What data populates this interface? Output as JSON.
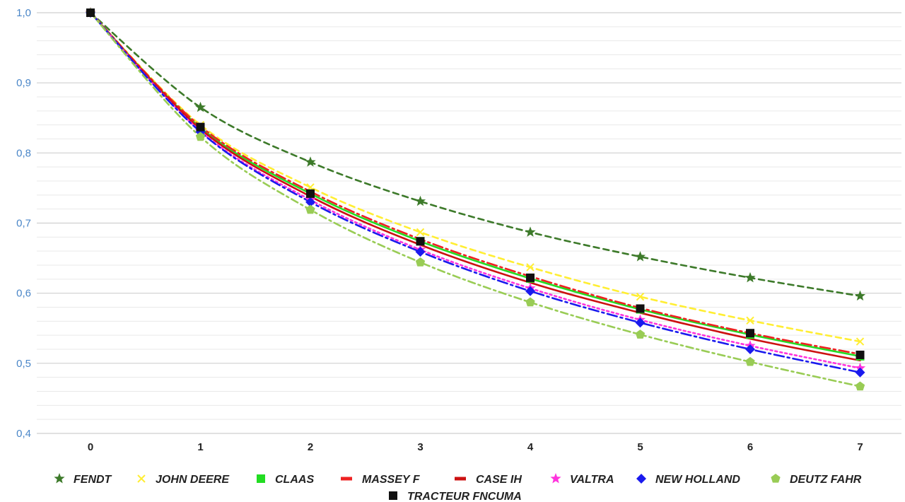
{
  "chart_data": {
    "type": "line",
    "x": [
      0,
      1,
      2,
      3,
      4,
      5,
      6,
      7
    ],
    "ylim": [
      0.4,
      1.0
    ],
    "y_ticks": [
      "0,4",
      "0,5",
      "0,6",
      "0,7",
      "0,8",
      "0,9",
      "1,0"
    ],
    "y_tick_values": [
      0.4,
      0.5,
      0.6,
      0.7,
      0.8,
      0.9,
      1.0
    ],
    "x_ticks": [
      "0",
      "1",
      "2",
      "3",
      "4",
      "5",
      "6",
      "7"
    ],
    "grid": true,
    "legend_position": "bottom",
    "title": "",
    "xlabel": "",
    "ylabel": "",
    "series": [
      {
        "name": "FENDT",
        "values": [
          1.0,
          0.865,
          0.787,
          0.731,
          0.687,
          0.652,
          0.622,
          0.596
        ],
        "color": "#3d7a2a",
        "dash": "8,6",
        "marker": "star-icon"
      },
      {
        "name": "JOHN DEERE",
        "values": [
          1.0,
          0.84,
          0.751,
          0.687,
          0.637,
          0.595,
          0.561,
          0.531
        ],
        "color": "#ffee33",
        "dash": "8,6",
        "marker": "cross-icon"
      },
      {
        "name": "CLAAS",
        "values": [
          1.0,
          0.836,
          0.742,
          0.674,
          0.621,
          0.577,
          0.541,
          0.51
        ],
        "color": "#22dd22",
        "dash": "",
        "marker": "square-icon"
      },
      {
        "name": "MASSEY F",
        "values": [
          1.0,
          0.838,
          0.745,
          0.677,
          0.624,
          0.579,
          0.543,
          0.513
        ],
        "color": "#ee2222",
        "dash": "14,5,3,5",
        "marker": "dash-icon"
      },
      {
        "name": "CASE IH",
        "values": [
          1.0,
          0.834,
          0.738,
          0.669,
          0.615,
          0.572,
          0.535,
          0.504
        ],
        "color": "#cc1111",
        "dash": "",
        "marker": "dash-icon"
      },
      {
        "name": "VALTRA",
        "values": [
          1.0,
          0.831,
          0.733,
          0.662,
          0.607,
          0.562,
          0.525,
          0.493
        ],
        "color": "#ff33dd",
        "dash": "3,4",
        "marker": "star-icon"
      },
      {
        "name": "NEW HOLLAND",
        "values": [
          1.0,
          0.83,
          0.73,
          0.659,
          0.603,
          0.558,
          0.52,
          0.487
        ],
        "color": "#1a1aee",
        "dash": "14,5,3,5",
        "marker": "diamond-icon"
      },
      {
        "name": "DEUTZ FAHR",
        "values": [
          1.0,
          0.823,
          0.719,
          0.644,
          0.587,
          0.541,
          0.502,
          0.467
        ],
        "color": "#99cc55",
        "dash": "10,5,3,5",
        "marker": "pentagon-icon"
      },
      {
        "name": "TRACTEUR FNCUMA",
        "values": [
          1.0,
          0.837,
          0.742,
          0.674,
          0.622,
          0.578,
          0.543,
          0.512
        ],
        "color": "#111111",
        "dash": "none",
        "marker": "square-icon"
      }
    ]
  }
}
